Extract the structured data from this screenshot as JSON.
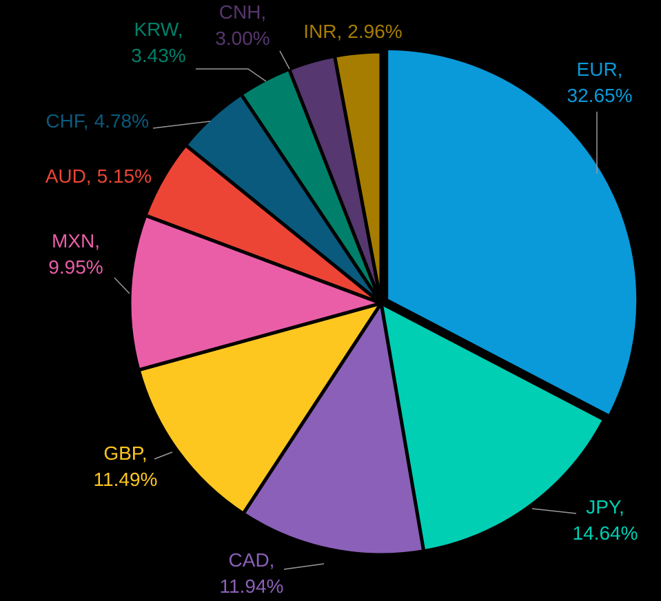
{
  "chart_data": {
    "type": "pie",
    "categories": [
      "EUR,",
      "JPY,",
      "CAD,",
      "GBP,",
      "MXN,",
      "AUD,",
      "CHF,",
      "KRW,",
      "CNH,",
      "INR,"
    ],
    "values": [
      32.65,
      14.64,
      11.94,
      11.49,
      9.95,
      5.15,
      4.78,
      3.43,
      3.0,
      2.96
    ],
    "value_labels": [
      "32.65%",
      "14.64%",
      "11.94%",
      "11.49%",
      "9.95%",
      "5.15%",
      "4.78%",
      "3.43%",
      "3.00%",
      "2.96%"
    ],
    "colors": [
      "#0a9ad9",
      "#00cfb4",
      "#8b60b8",
      "#fec720",
      "#ea5ea8",
      "#ec4536",
      "#0a5a7e",
      "#00806a",
      "#57376f",
      "#a67d00"
    ]
  }
}
